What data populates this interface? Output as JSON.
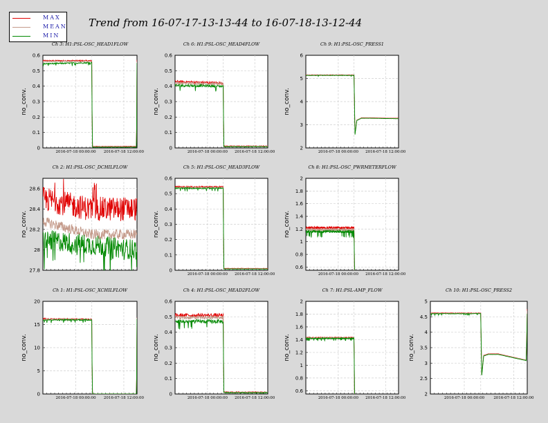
{
  "title": "Trend from 16-07-17-13-13-44 to 16-07-18-13-12-44",
  "legend": [
    {
      "label": "MAX",
      "color": "#e00000"
    },
    {
      "label": "MEAN",
      "color": "#c49a8a"
    },
    {
      "label": "MIN",
      "color": "#008800"
    }
  ],
  "chart_data": [
    {
      "type": "line",
      "title": "Ch 3: H1:PSL-OSC_HEAD1FLOW",
      "ylabel": "no_conv.",
      "yticks": [
        "0",
        "0.1",
        "0.2",
        "0.3",
        "0.4",
        "0.5",
        "0.6"
      ],
      "ylim": [
        0,
        0.6
      ],
      "xticks": [
        "2016-07-18 00:00:00",
        "2016-07-18 12:00:00"
      ],
      "grid": true,
      "series": [
        {
          "name": "MAX",
          "x": [
            0,
            0.52,
            0.525,
            0.995,
            1.0
          ],
          "values": [
            0.565,
            0.565,
            0.01,
            0.01,
            0.57
          ]
        },
        {
          "name": "MEAN",
          "x": [
            0,
            0.52,
            0.525,
            0.995,
            1.0
          ],
          "values": [
            0.56,
            0.56,
            0.008,
            0.008,
            0.56
          ]
        },
        {
          "name": "MIN",
          "x": [
            0,
            0.52,
            0.525,
            0.995,
            1.0
          ],
          "values": [
            0.545,
            0.552,
            0.005,
            0.005,
            0.55
          ]
        }
      ]
    },
    {
      "type": "line",
      "title": "Ch 6: H1:PSL-OSC_HEAD4FLOW",
      "ylabel": "no_conv.",
      "yticks": [
        "0",
        "0.1",
        "0.2",
        "0.3",
        "0.4",
        "0.5",
        "0.6"
      ],
      "ylim": [
        0,
        0.6
      ],
      "xticks": [
        "2016-07-18 00:00:00",
        "2016-07-18 12:00:00"
      ],
      "grid": true,
      "series": [
        {
          "name": "MAX",
          "x": [
            0,
            0.52,
            0.525,
            1.0
          ],
          "values": [
            0.43,
            0.42,
            0.012,
            0.012
          ]
        },
        {
          "name": "MEAN",
          "x": [
            0,
            0.52,
            0.525,
            1.0
          ],
          "values": [
            0.42,
            0.415,
            0.01,
            0.01
          ]
        },
        {
          "name": "MIN",
          "x": [
            0,
            0.52,
            0.525,
            1.0
          ],
          "values": [
            0.405,
            0.4,
            0.008,
            0.008
          ]
        }
      ]
    },
    {
      "type": "line",
      "title": "Ch 9: H1:PSL-OSC_PRESS1",
      "ylabel": "no_conv.",
      "yticks": [
        "2",
        "3",
        "4",
        "5",
        "6"
      ],
      "ylim": [
        2,
        6
      ],
      "xticks": [
        "2016-07-18 00:00:00",
        "2016-07-18 12:00:00"
      ],
      "grid": true,
      "series": [
        {
          "name": "MAX",
          "x": [
            0,
            0.52,
            0.53,
            0.55,
            0.6,
            0.7,
            1.0
          ],
          "values": [
            5.15,
            5.15,
            2.6,
            3.2,
            3.3,
            3.3,
            3.28
          ]
        },
        {
          "name": "MEAN",
          "x": [
            0,
            0.52,
            0.53,
            0.55,
            0.6,
            0.7,
            1.0
          ],
          "values": [
            5.14,
            5.14,
            2.6,
            3.2,
            3.29,
            3.29,
            3.27
          ]
        },
        {
          "name": "MIN",
          "x": [
            0,
            0.52,
            0.53,
            0.55,
            0.6,
            0.7,
            1.0
          ],
          "values": [
            5.13,
            5.13,
            2.55,
            3.18,
            3.28,
            3.28,
            3.26
          ]
        }
      ]
    },
    {
      "type": "line",
      "title": "Ch 2: H1:PSL-OSC_DCHILFLOW",
      "ylabel": "no_conv.",
      "yticks": [
        "27.8",
        "28",
        "28.2",
        "28.4",
        "28.6"
      ],
      "ylim": [
        27.8,
        28.7
      ],
      "xticks": [],
      "grid": true,
      "series": [
        {
          "name": "MAX",
          "x": [
            0,
            0.5,
            1.0
          ],
          "values": [
            28.5,
            28.4,
            28.4
          ]
        },
        {
          "name": "MEAN",
          "x": [
            0,
            0.5,
            1.0
          ],
          "values": [
            28.28,
            28.15,
            28.15
          ]
        },
        {
          "name": "MIN",
          "x": [
            0,
            0.5,
            1.0
          ],
          "values": [
            28.1,
            28.05,
            28.0
          ]
        }
      ]
    },
    {
      "type": "line",
      "title": "Ch 5: H1:PSL-OSC_HEAD3FLOW",
      "ylabel": "no_conv.",
      "yticks": [
        "0",
        "0.1",
        "0.2",
        "0.3",
        "0.4",
        "0.5",
        "0.6"
      ],
      "ylim": [
        0,
        0.6
      ],
      "xticks": [
        "2016-07-18 00:00:00",
        "2016-07-18 12:00:00"
      ],
      "grid": true,
      "series": [
        {
          "name": "MAX",
          "x": [
            0,
            0.52,
            0.525,
            1.0
          ],
          "values": [
            0.545,
            0.545,
            0.012,
            0.012
          ]
        },
        {
          "name": "MEAN",
          "x": [
            0,
            0.52,
            0.525,
            1.0
          ],
          "values": [
            0.54,
            0.54,
            0.01,
            0.01
          ]
        },
        {
          "name": "MIN",
          "x": [
            0,
            0.52,
            0.525,
            1.0
          ],
          "values": [
            0.535,
            0.535,
            0.008,
            0.008
          ]
        }
      ]
    },
    {
      "type": "line",
      "title": "Ch 8: H1:PSL-OSC_PWRMETERFLOW",
      "ylabel": "no_conv.",
      "yticks": [
        "0.6",
        "0.8",
        "1",
        "1.2",
        "1.4",
        "1.6",
        "1.8",
        "2"
      ],
      "ylim": [
        0.55,
        2
      ],
      "xticks": [
        "2016-07-18 00:00:00",
        "2016-07-18 12:00:00"
      ],
      "grid": true,
      "series": [
        {
          "name": "MAX",
          "x": [
            0,
            0.52,
            0.525
          ],
          "values": [
            1.22,
            1.22,
            0.55
          ]
        },
        {
          "name": "MEAN",
          "x": [
            0,
            0.52,
            0.525
          ],
          "values": [
            1.19,
            1.19,
            0.55
          ]
        },
        {
          "name": "MIN",
          "x": [
            0,
            0.52,
            0.525
          ],
          "values": [
            1.16,
            1.16,
            0.55
          ]
        }
      ]
    },
    {
      "type": "line",
      "title": "Ch 1: H1:PSL-OSC_XCHILFLOW",
      "ylabel": "no_conv.",
      "yticks": [
        "0",
        "5",
        "10",
        "15",
        "20"
      ],
      "ylim": [
        0,
        20
      ],
      "xticks": [
        "2016-07-18 00:00:00",
        "2016-07-18 12:00:00"
      ],
      "grid": true,
      "series": [
        {
          "name": "MAX",
          "x": [
            0,
            0.52,
            0.525,
            0.995,
            1.0
          ],
          "values": [
            16.2,
            16.1,
            0,
            0,
            16.5
          ]
        },
        {
          "name": "MEAN",
          "x": [
            0,
            0.52,
            0.525,
            0.995,
            1.0
          ],
          "values": [
            16.1,
            16.05,
            0,
            0,
            16.4
          ]
        },
        {
          "name": "MIN",
          "x": [
            0,
            0.52,
            0.525,
            0.995,
            1.0
          ],
          "values": [
            16.0,
            16.0,
            0,
            0,
            16.2
          ]
        }
      ]
    },
    {
      "type": "line",
      "title": "Ch 4: H1:PSL-OSC_HEAD2FLOW",
      "ylabel": "no_conv.",
      "yticks": [
        "0",
        "0.1",
        "0.2",
        "0.3",
        "0.4",
        "0.5",
        "0.6"
      ],
      "ylim": [
        0,
        0.6
      ],
      "xticks": [
        "2016-07-18 00:00:00",
        "2016-07-18 12:00:00"
      ],
      "grid": true,
      "series": [
        {
          "name": "MAX",
          "x": [
            0,
            0.52,
            0.525,
            1.0
          ],
          "values": [
            0.51,
            0.51,
            0.012,
            0.012
          ]
        },
        {
          "name": "MEAN",
          "x": [
            0,
            0.52,
            0.525,
            1.0
          ],
          "values": [
            0.495,
            0.495,
            0.01,
            0.01
          ]
        },
        {
          "name": "MIN",
          "x": [
            0,
            0.52,
            0.525,
            1.0
          ],
          "values": [
            0.47,
            0.47,
            0.008,
            0.008
          ]
        }
      ]
    },
    {
      "type": "line",
      "title": "Ch 7: H1:PSL-AMP_FLOW",
      "ylabel": "no_conv.",
      "yticks": [
        "0.6",
        "0.8",
        "1",
        "1.2",
        "1.4",
        "1.6",
        "1.8",
        "2"
      ],
      "ylim": [
        0.55,
        2
      ],
      "xticks": [
        "2016-07-18 00:00:00",
        "2016-07-18 12:00:00"
      ],
      "grid": true,
      "series": [
        {
          "name": "MAX",
          "x": [
            0,
            0.52,
            0.525
          ],
          "values": [
            1.43,
            1.43,
            0.55
          ]
        },
        {
          "name": "MEAN",
          "x": [
            0,
            0.52,
            0.525
          ],
          "values": [
            1.425,
            1.425,
            0.55
          ]
        },
        {
          "name": "MIN",
          "x": [
            0,
            0.52,
            0.525
          ],
          "values": [
            1.42,
            1.42,
            0.55
          ]
        }
      ]
    },
    {
      "type": "line",
      "title": "Ch 10: H1:PSL-OSC_PRESS2",
      "ylabel": "no_conv.",
      "yticks": [
        "2",
        "2.5",
        "3",
        "3.5",
        "4",
        "4.5",
        "5"
      ],
      "ylim": [
        2,
        5
      ],
      "xticks": [
        "2016-07-18 00:00:00",
        "2016-07-18 12:00:00"
      ],
      "grid": true,
      "series": [
        {
          "name": "MAX",
          "x": [
            0,
            0.52,
            0.53,
            0.55,
            0.6,
            0.7,
            0.99,
            1.0
          ],
          "values": [
            4.62,
            4.62,
            2.6,
            3.25,
            3.3,
            3.3,
            3.1,
            4.75
          ]
        },
        {
          "name": "MEAN",
          "x": [
            0,
            0.52,
            0.53,
            0.55,
            0.6,
            0.7,
            0.99,
            1.0
          ],
          "values": [
            4.61,
            4.61,
            2.6,
            3.24,
            3.29,
            3.29,
            3.1,
            4.7
          ]
        },
        {
          "name": "MIN",
          "x": [
            0,
            0.52,
            0.53,
            0.55,
            0.6,
            0.7,
            0.99,
            1.0
          ],
          "values": [
            4.6,
            4.6,
            2.58,
            3.23,
            3.28,
            3.28,
            3.08,
            4.6
          ]
        }
      ]
    }
  ]
}
